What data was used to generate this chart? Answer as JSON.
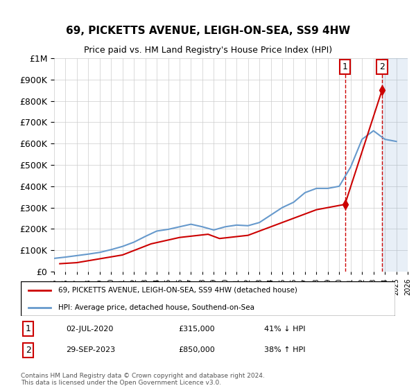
{
  "title": "69, PICKETTS AVENUE, LEIGH-ON-SEA, SS9 4HW",
  "subtitle": "Price paid vs. HM Land Registry's House Price Index (HPI)",
  "legend_line1": "69, PICKETTS AVENUE, LEIGH-ON-SEA, SS9 4HW (detached house)",
  "legend_line2": "HPI: Average price, detached house, Southend-on-Sea",
  "transaction1_date": "02-JUL-2020",
  "transaction1_price": 315000,
  "transaction1_pct": "41% ↓ HPI",
  "transaction1_year": 2020.5,
  "transaction2_date": "29-SEP-2023",
  "transaction2_price": 850000,
  "transaction2_pct": "38% ↑ HPI",
  "transaction2_year": 2023.75,
  "footer": "Contains HM Land Registry data © Crown copyright and database right 2024.\nThis data is licensed under the Open Government Licence v3.0.",
  "hpi_color": "#6699cc",
  "price_color": "#cc0000",
  "background_color": "#ffffff",
  "grid_color": "#cccccc",
  "hpi_years": [
    1995,
    1996,
    1997,
    1998,
    1999,
    2000,
    2001,
    2002,
    2003,
    2004,
    2005,
    2006,
    2007,
    2008,
    2009,
    2010,
    2011,
    2012,
    2013,
    2014,
    2015,
    2016,
    2017,
    2018,
    2019,
    2020,
    2021,
    2022,
    2023,
    2024,
    2025
  ],
  "hpi_values": [
    62000,
    68000,
    75000,
    82000,
    90000,
    103000,
    118000,
    138000,
    165000,
    190000,
    198000,
    210000,
    222000,
    210000,
    195000,
    210000,
    218000,
    215000,
    230000,
    265000,
    300000,
    325000,
    370000,
    390000,
    390000,
    400000,
    490000,
    620000,
    660000,
    620000,
    610000
  ],
  "price_years": [
    1995.5,
    1997.0,
    2001.0,
    2003.5,
    2006.0,
    2008.5,
    2009.5,
    2012.0,
    2014.0,
    2016.0,
    2018.0,
    2020.5,
    2023.75
  ],
  "price_values": [
    37000,
    42000,
    78000,
    130000,
    160000,
    175000,
    155000,
    170000,
    210000,
    250000,
    290000,
    315000,
    850000
  ],
  "ylim": [
    0,
    1000000
  ],
  "xlim": [
    1995,
    2026
  ]
}
